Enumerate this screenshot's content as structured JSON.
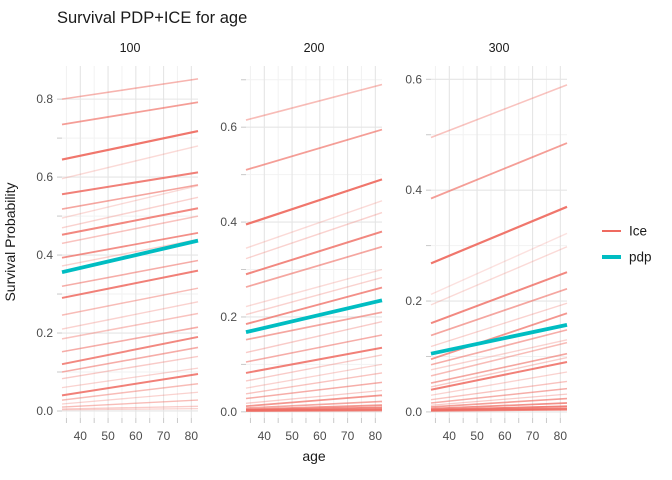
{
  "chart_data": {
    "type": "line",
    "title": "Survival PDP+ICE for age",
    "xlabel": "age",
    "ylabel": "Survival Probability",
    "xlim": [
      33.4,
      82.4
    ],
    "x_major_ticks": [
      40,
      50,
      60,
      70,
      80
    ],
    "x_minor_ticks": [
      35,
      45,
      55,
      65,
      75
    ],
    "grid": true,
    "legend_position": "right",
    "colors": {
      "ice": "#EF6A60",
      "pdp": "#00BDC2",
      "grid_major": "#E5E5E5",
      "grid_minor": "#F2F2F2",
      "tick": "#C9C9C9",
      "tick_label": "#4D4D4D",
      "text": "#1A1A1A"
    },
    "legend": {
      "entries": [
        {
          "label": "Ice",
          "key": "ice"
        },
        {
          "label": "pdp",
          "key": "pdp"
        }
      ]
    },
    "facets": [
      {
        "label": "100",
        "ylim": [
          -0.018,
          0.885
        ],
        "y_ticks": [
          0.0,
          0.2,
          0.4,
          0.6,
          0.8
        ],
        "y_minor": [
          0.1,
          0.3,
          0.5,
          0.7
        ],
        "pdp": [
          0.356,
          0.437
        ],
        "ice": [
          [
            0.8,
            0.852,
            0.5,
            1.6
          ],
          [
            0.735,
            0.792,
            0.65,
            1.8
          ],
          [
            0.645,
            0.718,
            0.92,
            2.2
          ],
          [
            0.596,
            0.68,
            0.25,
            1.4
          ],
          [
            0.556,
            0.612,
            0.85,
            2.0
          ],
          [
            0.518,
            0.58,
            0.6,
            1.6
          ],
          [
            0.495,
            0.578,
            0.25,
            1.4
          ],
          [
            0.47,
            0.548,
            0.3,
            1.4
          ],
          [
            0.452,
            0.52,
            0.8,
            2.0
          ],
          [
            0.43,
            0.5,
            0.4,
            1.5
          ],
          [
            0.393,
            0.457,
            0.75,
            1.8
          ],
          [
            0.372,
            0.44,
            0.3,
            1.4
          ],
          [
            0.32,
            0.386,
            0.55,
            1.6
          ],
          [
            0.29,
            0.36,
            0.85,
            2.0
          ],
          [
            0.246,
            0.315,
            0.45,
            1.5
          ],
          [
            0.21,
            0.28,
            0.3,
            1.4
          ],
          [
            0.185,
            0.25,
            0.4,
            1.5
          ],
          [
            0.152,
            0.215,
            0.55,
            1.6
          ],
          [
            0.12,
            0.19,
            0.8,
            2.0
          ],
          [
            0.1,
            0.163,
            0.55,
            1.6
          ],
          [
            0.083,
            0.14,
            0.35,
            1.4
          ],
          [
            0.06,
            0.11,
            0.3,
            1.3
          ],
          [
            0.04,
            0.095,
            0.85,
            2.0
          ],
          [
            0.028,
            0.07,
            0.45,
            1.5
          ],
          [
            0.018,
            0.048,
            0.3,
            1.3
          ],
          [
            0.01,
            0.028,
            0.45,
            1.4
          ],
          [
            0.005,
            0.012,
            0.35,
            1.3
          ],
          [
            0.003,
            0.006,
            0.3,
            1.2
          ]
        ]
      },
      {
        "label": "200",
        "ylim": [
          -0.013,
          0.729
        ],
        "y_ticks": [
          0.0,
          0.2,
          0.4,
          0.6
        ],
        "y_minor": [
          0.1,
          0.3,
          0.5,
          0.7
        ],
        "pdp": [
          0.168,
          0.235
        ],
        "ice": [
          [
            0.615,
            0.69,
            0.45,
            1.6
          ],
          [
            0.51,
            0.595,
            0.65,
            1.8
          ],
          [
            0.395,
            0.49,
            0.92,
            2.2
          ],
          [
            0.345,
            0.445,
            0.25,
            1.4
          ],
          [
            0.323,
            0.42,
            0.3,
            1.4
          ],
          [
            0.29,
            0.38,
            0.8,
            2.0
          ],
          [
            0.263,
            0.348,
            0.6,
            1.7
          ],
          [
            0.222,
            0.3,
            0.25,
            1.4
          ],
          [
            0.205,
            0.283,
            0.3,
            1.4
          ],
          [
            0.185,
            0.262,
            0.75,
            1.9
          ],
          [
            0.152,
            0.21,
            0.6,
            1.7
          ],
          [
            0.125,
            0.19,
            0.35,
            1.4
          ],
          [
            0.105,
            0.162,
            0.55,
            1.6
          ],
          [
            0.082,
            0.135,
            0.85,
            2.0
          ],
          [
            0.065,
            0.12,
            0.35,
            1.4
          ],
          [
            0.05,
            0.1,
            0.3,
            1.3
          ],
          [
            0.038,
            0.082,
            0.4,
            1.4
          ],
          [
            0.028,
            0.062,
            0.55,
            1.5
          ],
          [
            0.018,
            0.045,
            0.35,
            1.3
          ],
          [
            0.012,
            0.035,
            0.7,
            1.7
          ],
          [
            0.008,
            0.022,
            0.6,
            1.6
          ],
          [
            0.005,
            0.014,
            0.7,
            1.8
          ],
          [
            0.004,
            0.009,
            0.8,
            1.8
          ],
          [
            0.003,
            0.005,
            0.85,
            2.0
          ],
          [
            0.002,
            0.003,
            0.8,
            2.0
          ]
        ]
      },
      {
        "label": "300",
        "ylim": [
          -0.011,
          0.624
        ],
        "y_ticks": [
          0.0,
          0.2,
          0.4,
          0.6
        ],
        "y_minor": [
          0.1,
          0.3,
          0.5
        ],
        "pdp": [
          0.105,
          0.157
        ],
        "ice": [
          [
            0.495,
            0.59,
            0.4,
            1.6
          ],
          [
            0.385,
            0.485,
            0.65,
            1.8
          ],
          [
            0.268,
            0.37,
            0.92,
            2.2
          ],
          [
            0.212,
            0.322,
            0.2,
            1.4
          ],
          [
            0.193,
            0.298,
            0.25,
            1.4
          ],
          [
            0.16,
            0.252,
            0.8,
            2.0
          ],
          [
            0.138,
            0.222,
            0.6,
            1.7
          ],
          [
            0.118,
            0.196,
            0.3,
            1.4
          ],
          [
            0.095,
            0.178,
            0.7,
            1.8
          ],
          [
            0.085,
            0.148,
            0.55,
            1.6
          ],
          [
            0.076,
            0.13,
            0.3,
            1.4
          ],
          [
            0.065,
            0.125,
            0.45,
            1.5
          ],
          [
            0.052,
            0.105,
            0.6,
            1.6
          ],
          [
            0.045,
            0.098,
            0.35,
            1.4
          ],
          [
            0.04,
            0.09,
            0.85,
            2.0
          ],
          [
            0.03,
            0.072,
            0.3,
            1.3
          ],
          [
            0.022,
            0.055,
            0.4,
            1.4
          ],
          [
            0.016,
            0.042,
            0.55,
            1.5
          ],
          [
            0.012,
            0.032,
            0.35,
            1.3
          ],
          [
            0.009,
            0.024,
            0.65,
            1.6
          ],
          [
            0.006,
            0.016,
            0.75,
            1.7
          ],
          [
            0.004,
            0.01,
            0.85,
            1.9
          ],
          [
            0.003,
            0.006,
            0.85,
            2.0
          ],
          [
            0.002,
            0.004,
            0.8,
            2.0
          ]
        ]
      }
    ]
  }
}
